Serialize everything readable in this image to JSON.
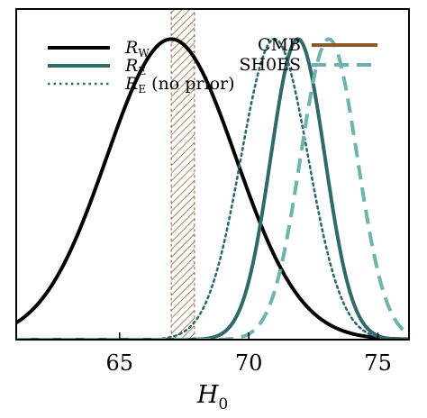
{
  "chart_data": {
    "type": "line",
    "xlabel": "H",
    "xlabel_sub": "0",
    "xlim": [
      61.0,
      76.2
    ],
    "ylim": [
      0,
      1.1
    ],
    "xticks": [
      {
        "value": 65,
        "label": "65"
      },
      {
        "value": 70,
        "label": "70"
      },
      {
        "value": 75,
        "label": "75"
      }
    ],
    "band": {
      "name": "CMB",
      "x_range": [
        67.0,
        67.9
      ],
      "color": "#8B5A2B"
    },
    "series": [
      {
        "name": "R",
        "sub": "W",
        "suffix": "",
        "color": "#000000",
        "dash": "solid",
        "peak": 67.0,
        "sigma": 2.5
      },
      {
        "name": "R",
        "sub": "E",
        "suffix": "",
        "color": "#2e6b68",
        "dash": "solid",
        "peak": 71.9,
        "sigma": 1.05
      },
      {
        "name": "R",
        "sub": "E",
        "suffix": " (no prior)",
        "color": "#2e6b68",
        "dash": "dotted",
        "peak": 71.0,
        "sigma": 1.3
      },
      {
        "name": "SH0ES",
        "sub": "",
        "suffix": "",
        "color": "#6fb3ae",
        "dash": "dashed",
        "peak": 73.1,
        "sigma": 1.1
      }
    ],
    "legend_left": [
      {
        "series_index": 0
      },
      {
        "series_index": 1
      },
      {
        "series_index": 2
      }
    ],
    "legend_right": [
      {
        "label": "CMB",
        "color": "#8B5A2B",
        "dash": "solid"
      },
      {
        "label": "SH0ES",
        "color": "#6fb3ae",
        "dash": "dashed"
      }
    ],
    "grid": false,
    "legend_placement": "top"
  }
}
